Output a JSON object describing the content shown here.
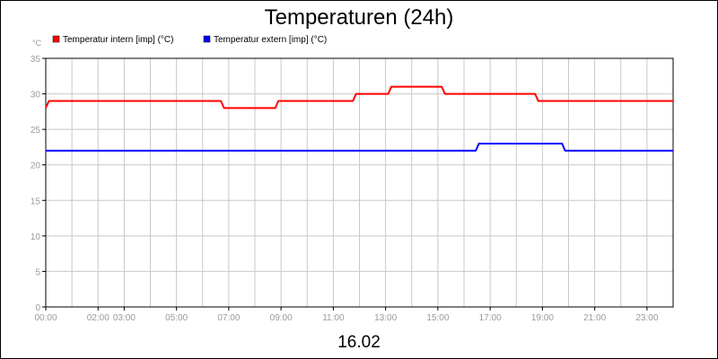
{
  "chart_data": {
    "type": "line",
    "title": "Temperaturen (24h)",
    "y_unit": "°C",
    "date_label": "16.02",
    "ylim": [
      0,
      35
    ],
    "y_ticks": [
      0,
      5,
      10,
      15,
      20,
      25,
      30,
      35
    ],
    "x_range_hours": [
      0,
      24
    ],
    "x_tick_hours": [
      0,
      2,
      3,
      5,
      7,
      9,
      11,
      13,
      15,
      17,
      19,
      21,
      23
    ],
    "x_tick_labels": [
      "00:00",
      "02:00",
      "03:00",
      "05:00",
      "07:00",
      "09:00",
      "11:00",
      "13:00",
      "15:00",
      "17:00",
      "19:00",
      "21:00",
      "23:00"
    ],
    "grid": true,
    "legend_position": "top-left",
    "series": [
      {
        "name": "Temperatur intern [imp] (°C)",
        "color": "#ff0000",
        "x_hours": [
          0.0,
          0.12,
          6.7,
          6.82,
          8.78,
          8.9,
          11.75,
          11.87,
          13.1,
          13.22,
          15.15,
          15.27,
          18.72,
          18.84,
          24.0
        ],
        "values": [
          28,
          29,
          29,
          28,
          28,
          29,
          29,
          30,
          30,
          31,
          31,
          30,
          30,
          29,
          29
        ]
      },
      {
        "name": "Temperatur extern [imp] (°C)",
        "color": "#0000ff",
        "x_hours": [
          0.0,
          16.45,
          16.57,
          19.75,
          19.87,
          24.0
        ],
        "values": [
          22,
          22,
          23,
          23,
          22,
          22
        ]
      }
    ]
  }
}
